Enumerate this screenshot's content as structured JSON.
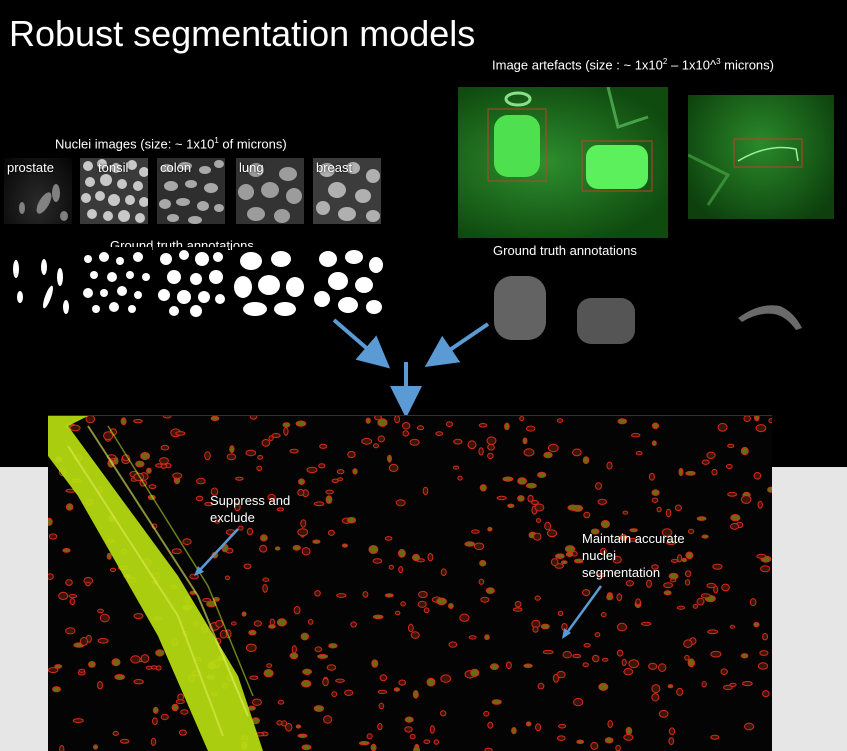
{
  "slide": {
    "title": "Robust segmentation models",
    "nuclei_caption": {
      "prefix": "Nuclei images (size: ~ 1x10",
      "sup": "1",
      "suffix": " of microns)"
    },
    "artefacts_caption": {
      "prefix": "Image artefacts (size : ~ 1x10",
      "sup1": "2",
      "middle": " – 1x10^",
      "sup2": "3",
      "suffix": " microns)"
    },
    "tissues": [
      "prostate",
      "tonsil",
      "colon",
      "lung",
      "breast"
    ],
    "ground_truth_left": "Ground truth annotations",
    "ground_truth_right": "Ground truth annotations",
    "annotation_suppress": [
      "Suppress and",
      "exclude"
    ],
    "annotation_maintain": [
      "Maintain accurate",
      "nuclei",
      "segmentation"
    ]
  },
  "colors": {
    "background": "#000000",
    "outer": "#e6e6e6",
    "arrow": "#5b9bd5",
    "artefact_green": "#33e033",
    "nuclei_red": "#d82a1a"
  },
  "icons": [
    "arrow-down-right-icon",
    "arrow-down-left-icon",
    "arrow-down-icon"
  ]
}
